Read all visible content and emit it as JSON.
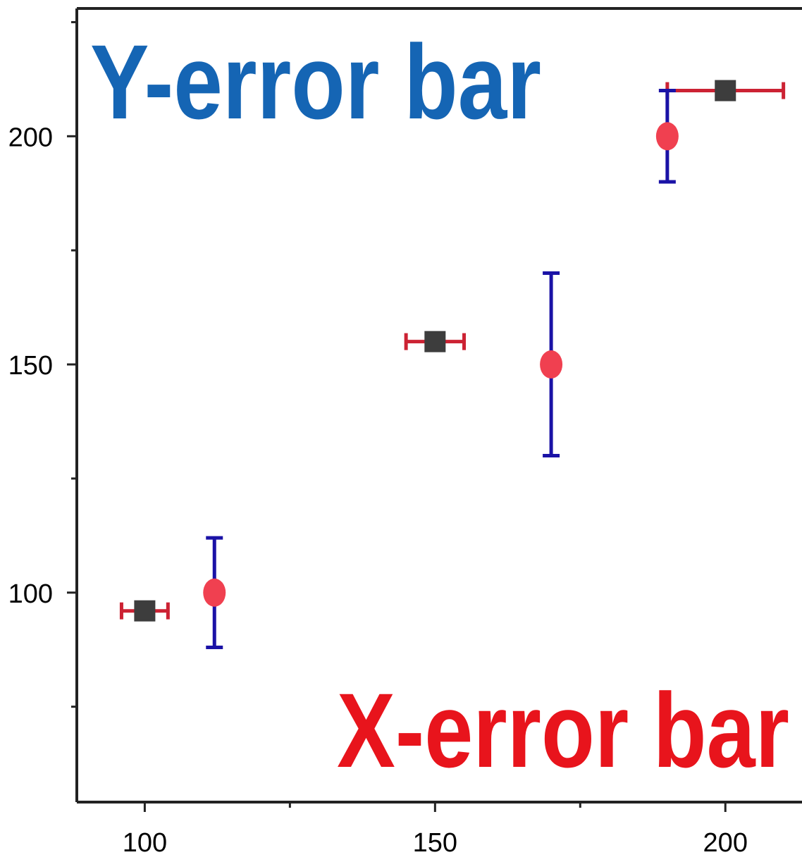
{
  "chart_data": {
    "type": "scatter",
    "title": "",
    "xlabel": "",
    "ylabel": "",
    "xlim": [
      88.3,
      213.2
    ],
    "ylim": [
      54.1,
      228.0
    ],
    "x_ticks": [
      100,
      150,
      200
    ],
    "y_ticks": [
      100,
      150,
      200
    ],
    "x_minor_ticks": [
      125,
      175
    ],
    "y_minor_ticks": [
      75,
      125,
      175,
      225
    ],
    "grid": false,
    "legend": "none",
    "annotations": [
      {
        "text": "Y-error bar",
        "color": "#1565b4",
        "placement": "top-left"
      },
      {
        "text": "X-error bar",
        "color": "#e8141c",
        "placement": "bottom-right"
      }
    ],
    "series": [
      {
        "marker": "square",
        "marker_color": "#3d3d3d",
        "error_direction": "x",
        "error_color": "#cc2233",
        "points": [
          {
            "x": 100,
            "y": 96,
            "xerr": 4
          },
          {
            "x": 150,
            "y": 155,
            "xerr": 5
          },
          {
            "x": 200,
            "y": 210,
            "xerr": 10
          }
        ]
      },
      {
        "marker": "circle",
        "marker_color": "#f04050",
        "error_direction": "y",
        "error_color": "#1a12a6",
        "points": [
          {
            "x": 112,
            "y": 100,
            "yerr": 12
          },
          {
            "x": 170,
            "y": 150,
            "yerr": 20
          },
          {
            "x": 190,
            "y": 200,
            "yerr": 10
          }
        ]
      }
    ]
  }
}
